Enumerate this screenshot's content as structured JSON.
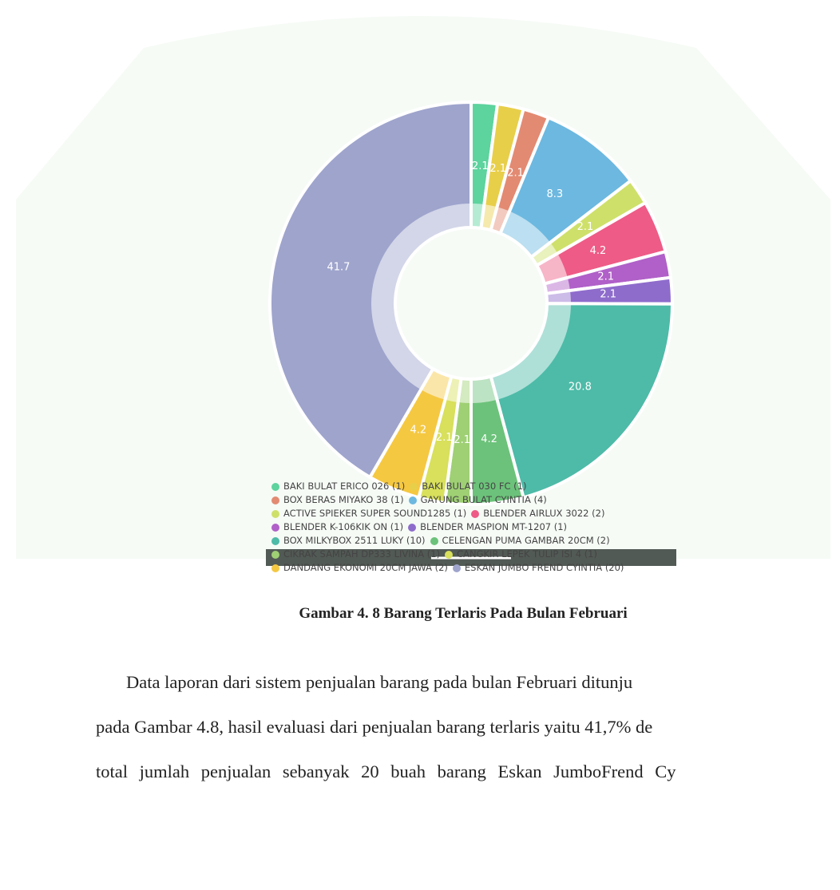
{
  "chart_data": {
    "type": "pie",
    "categories": [
      "BAKI BULAT ERICO 026 (1)",
      "BAKI BULAT 030 FC (1)",
      "BOX BERAS MIYAKO 38 (1)",
      "GAYUNG BULAT CYINTIA (4)",
      "ACTIVE SPIEKER SUPER SOUND1285 (1)",
      "BLENDER AIRLUX 3022 (2)",
      "BLENDER K-106KIK ON (1)",
      "BLENDER MASPION MT-1207 (1)",
      "BOX MILKYBOX 2511 LUKY (10)",
      "CELENGAN PUMA GAMBAR 20CM (2)",
      "CIKRAK SAMPAH DP333 LIVINA (1)",
      "CANGKIR LEPEK TULIP ISI 4 (1)",
      "DANDANG EKONOMI 20CM JAWA (2)",
      "ESKAN JUMBO FREND CYINTIA (20)"
    ],
    "values": [
      2.1,
      2.1,
      2.1,
      8.3,
      2.1,
      4.2,
      2.1,
      2.1,
      20.8,
      4.2,
      2.1,
      2.1,
      4.2,
      41.7
    ],
    "colors": [
      "#5dd39e",
      "#e8cf4a",
      "#e38a72",
      "#6cb8e0",
      "#cfe06a",
      "#ee5b86",
      "#b060c8",
      "#8e6ccc",
      "#4dbba8",
      "#6cc27a",
      "#9fd074",
      "#d8e05c",
      "#f5c842",
      "#9ea4cc"
    ]
  },
  "caption": "Gambar 4. 8 Barang Terlaris Pada Bulan Februari",
  "paragraph": {
    "lines": [
      "Data laporan dari sistem penjualan barang pada bulan Februari ditunju",
      "pada Gambar 4.8, hasil evaluasi dari penjualan barang terlaris yaitu 41,7% de",
      "total jumlah penjualan sebanyak 20 buah barang Eskan JumboFrend Cy"
    ]
  }
}
